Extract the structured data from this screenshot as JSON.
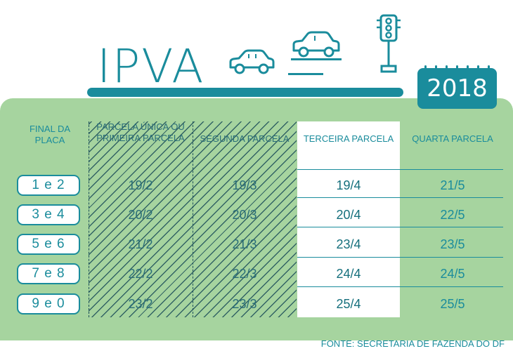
{
  "title": "IPVA",
  "year": "2018",
  "headers": {
    "final": "FINAL DA PLACA",
    "p1": "PARCELA ÚNICA OU PRIMEIRA PARCELA",
    "p2": "SEGUNDA PARCELA",
    "p3": "TERCEIRA PARCELA",
    "p4": "QUARTA PARCELA"
  },
  "rows": [
    {
      "plate": "1 e 2",
      "p1": "19/2",
      "p2": "19/3",
      "p3": "19/4",
      "p4": "21/5"
    },
    {
      "plate": "3 e 4",
      "p1": "20/2",
      "p2": "20/3",
      "p3": "20/4",
      "p4": "22/5"
    },
    {
      "plate": "5 e 6",
      "p1": "21/2",
      "p2": "21/3",
      "p3": "23/4",
      "p4": "23/5"
    },
    {
      "plate": "7 e 8",
      "p1": "22/2",
      "p2": "22/3",
      "p3": "24/4",
      "p4": "24/5"
    },
    {
      "plate": "9 e 0",
      "p1": "23/2",
      "p2": "23/3",
      "p3": "25/4",
      "p4": "25/5"
    }
  ],
  "source": "FONTE: SECRETARIA DE FAZENDA DO DF",
  "icons": [
    "car-icon",
    "car-icon",
    "traffic-light-icon"
  ],
  "colors": {
    "teal": "#1a8c9c",
    "green": "#a6d49f",
    "dark": "#1d4f5a"
  }
}
